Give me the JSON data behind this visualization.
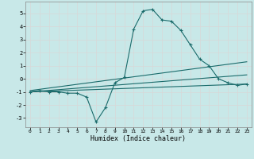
{
  "xlabel": "Humidex (Indice chaleur)",
  "background_color": "#c8e8e8",
  "line_color": "#1a6b6b",
  "grid_color": "#e8e8e8",
  "xlim": [
    -0.5,
    23.5
  ],
  "ylim": [
    -3.7,
    5.9
  ],
  "xticks": [
    0,
    1,
    2,
    3,
    4,
    5,
    6,
    7,
    8,
    9,
    10,
    11,
    12,
    13,
    14,
    15,
    16,
    17,
    18,
    19,
    20,
    21,
    22,
    23
  ],
  "yticks": [
    -3,
    -2,
    -1,
    0,
    1,
    2,
    3,
    4,
    5
  ],
  "series_main": {
    "x": [
      0,
      1,
      2,
      3,
      4,
      5,
      6,
      7,
      8,
      9,
      10,
      11,
      12,
      13,
      14,
      15,
      16,
      17,
      18,
      19,
      20,
      21,
      22,
      23
    ],
    "y": [
      -1.0,
      -0.9,
      -1.0,
      -1.0,
      -1.1,
      -1.1,
      -1.4,
      -3.3,
      -2.2,
      -0.3,
      0.1,
      3.8,
      5.2,
      5.3,
      4.5,
      4.4,
      3.7,
      2.6,
      1.5,
      1.0,
      0.0,
      -0.3,
      -0.5,
      -0.4
    ]
  },
  "series_linear": [
    {
      "x": [
        0,
        23
      ],
      "y": [
        -1.0,
        0.3
      ]
    },
    {
      "x": [
        0,
        23
      ],
      "y": [
        -0.9,
        1.3
      ]
    },
    {
      "x": [
        0,
        23
      ],
      "y": [
        -1.0,
        -0.4
      ]
    }
  ]
}
